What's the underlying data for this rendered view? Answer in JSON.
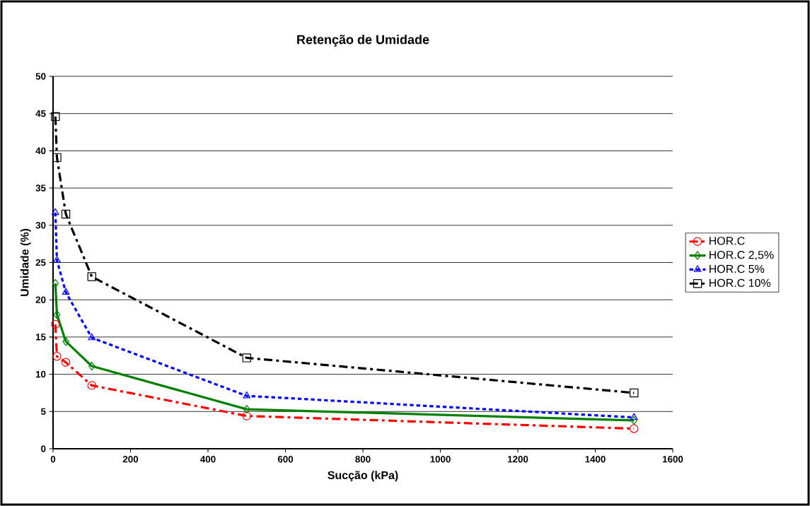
{
  "chart_data": {
    "type": "line",
    "title": "Retenção de Umidade",
    "xlabel": "Sucção (kPa)",
    "ylabel": "Umidade (%)",
    "x": [
      6,
      10,
      33,
      100,
      500,
      1500
    ],
    "series": [
      {
        "name": "HOR.C",
        "color": "#ff0000",
        "marker": "circle",
        "line_style": "dashdot",
        "values": [
          16.7,
          12.4,
          11.6,
          8.5,
          4.4,
          2.7
        ]
      },
      {
        "name": "HOR.C 2,5%",
        "color": "#008000",
        "marker": "diamond",
        "line_style": "solid",
        "values": [
          22.2,
          18.0,
          14.4,
          11.1,
          5.3,
          3.8
        ]
      },
      {
        "name": "HOR.C 5%",
        "color": "#0000ff",
        "marker": "triangle",
        "line_style": "dashed",
        "values": [
          31.7,
          25.3,
          21.0,
          14.9,
          7.1,
          4.2
        ]
      },
      {
        "name": "HOR.C 10%",
        "color": "#000000",
        "marker": "square",
        "line_style": "dashdot",
        "values": [
          44.6,
          39.1,
          31.5,
          23.1,
          12.2,
          7.5
        ]
      }
    ],
    "xlim": [
      0,
      1600
    ],
    "xticks": [
      0,
      200,
      400,
      600,
      800,
      1000,
      1200,
      1400,
      1600
    ],
    "ylim": [
      0,
      50
    ],
    "yticks": [
      0,
      5,
      10,
      15,
      20,
      25,
      30,
      35,
      40,
      45,
      50
    ],
    "grid": "y",
    "legend": "right"
  }
}
